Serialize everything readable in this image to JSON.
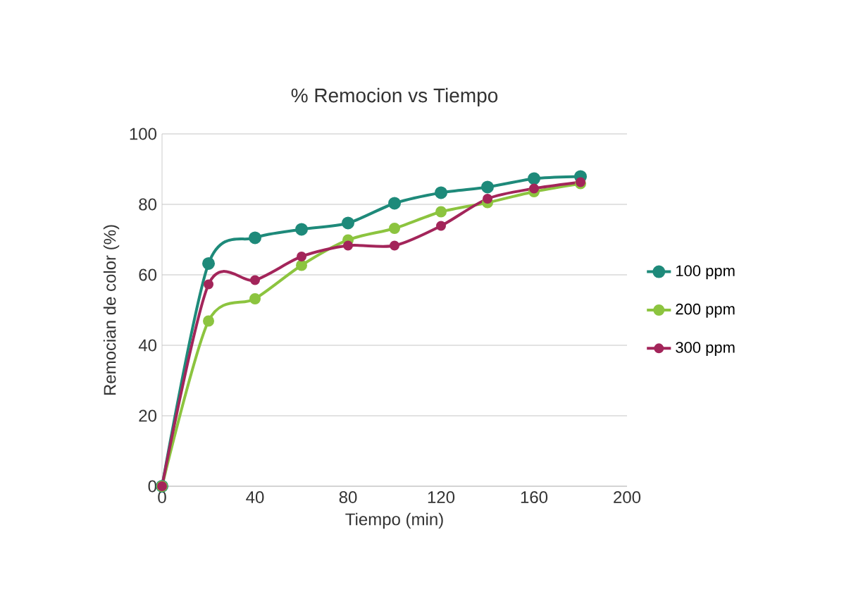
{
  "chart_data": {
    "type": "line",
    "title": "% Remocion vs Tiempo",
    "xlabel": "Tiempo (min)",
    "ylabel": "Remocian de color (%)",
    "x": [
      0,
      20,
      40,
      60,
      80,
      100,
      120,
      140,
      160,
      180
    ],
    "xlim": [
      0,
      200
    ],
    "xticks": [
      0,
      40,
      80,
      120,
      160,
      200
    ],
    "ylim": [
      0,
      100
    ],
    "yticks": [
      0,
      20,
      40,
      60,
      80,
      100
    ],
    "grid": "y",
    "legend": "right",
    "marker": "circle",
    "line_style": "solid",
    "series": [
      {
        "name": "100 ppm",
        "color": "#1e8a7a",
        "values": [
          0,
          63.2,
          70.5,
          72.9,
          74.7,
          80.3,
          83.3,
          84.9,
          87.3,
          87.9
        ]
      },
      {
        "name": "200 ppm",
        "color": "#8cc43f",
        "values": [
          0,
          46.9,
          53.2,
          62.7,
          69.9,
          73.2,
          77.9,
          80.5,
          83.6,
          85.9
        ]
      },
      {
        "name": "300 ppm",
        "color": "#a3255a",
        "values": [
          0,
          57.3,
          58.5,
          65.2,
          68.3,
          68.3,
          73.9,
          81.6,
          84.5,
          86.3
        ]
      }
    ]
  }
}
